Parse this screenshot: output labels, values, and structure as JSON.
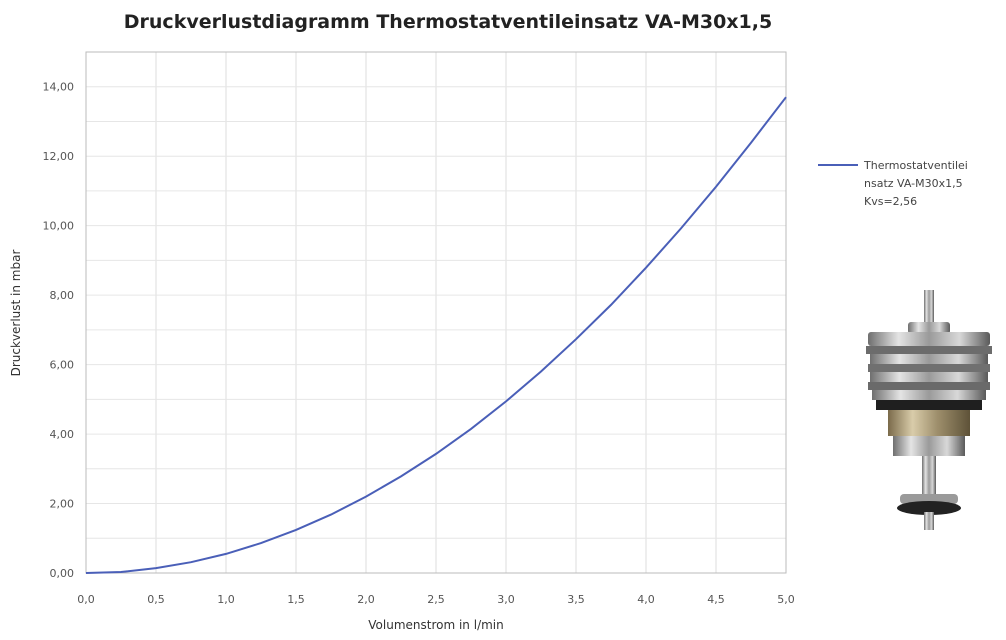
{
  "chart_data": {
    "type": "line",
    "title": "Druckverlustdiagramm Thermostatventileinsatz VA-M30x1,5",
    "xlabel": "Volumenstrom in l/min",
    "ylabel": "Druckverlust in mbar",
    "xlim": [
      0,
      5
    ],
    "ylim": [
      0,
      15
    ],
    "x_ticks": [
      "0,0",
      "0,5",
      "1,0",
      "1,5",
      "2,0",
      "2,5",
      "3,0",
      "3,5",
      "4,0",
      "4,5",
      "5,0"
    ],
    "y_ticks": [
      "0,00",
      "2,00",
      "4,00",
      "6,00",
      "8,00",
      "10,00",
      "12,00",
      "14,00"
    ],
    "grid": true,
    "legend_position": "right",
    "series": [
      {
        "name_lines": [
          "Thermostatventilei",
          "nsatz VA-M30x1,5",
          "Kvs=2,56"
        ],
        "color": "#4a5fb8",
        "x": [
          0,
          0.25,
          0.5,
          0.75,
          1.0,
          1.25,
          1.5,
          1.75,
          2.0,
          2.25,
          2.5,
          2.75,
          3.0,
          3.25,
          3.5,
          3.75,
          4.0,
          4.25,
          4.5,
          4.75,
          5.0
        ],
        "y": [
          0,
          0.03,
          0.14,
          0.31,
          0.55,
          0.86,
          1.24,
          1.68,
          2.2,
          2.78,
          3.43,
          4.15,
          4.94,
          5.8,
          6.73,
          7.72,
          8.79,
          9.92,
          11.12,
          12.39,
          13.7
        ]
      }
    ]
  },
  "image": {
    "name": "thermostat-valve-insert-photo"
  }
}
